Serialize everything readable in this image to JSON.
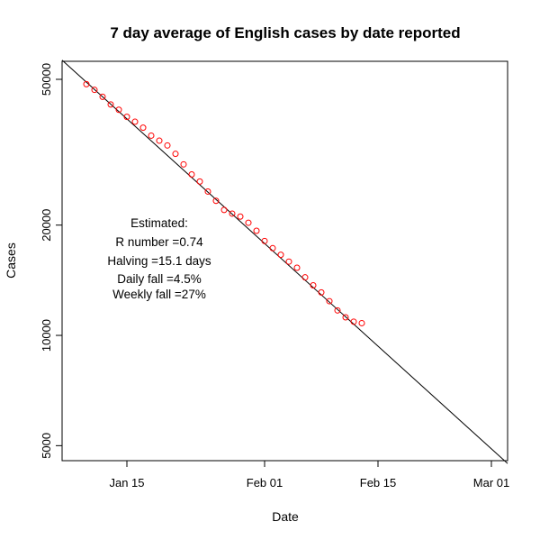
{
  "chart_data": {
    "type": "scatter",
    "title": "7 day average of English cases by date reported",
    "xlabel": "Date",
    "ylabel": "Cases",
    "log_y": true,
    "grid": false,
    "xlim": [
      "2021-01-07",
      "2021-03-03"
    ],
    "ylim": [
      4550,
      56000
    ],
    "x_ticks": [
      {
        "date": "2021-01-15",
        "label": "Jan 15"
      },
      {
        "date": "2021-02-01",
        "label": "Feb 01"
      },
      {
        "date": "2021-02-15",
        "label": "Feb 15"
      },
      {
        "date": "2021-03-01",
        "label": "Mar 01"
      }
    ],
    "y_ticks": [
      {
        "value": 5000,
        "label": "5000"
      },
      {
        "value": 10000,
        "label": "10000"
      },
      {
        "value": 20000,
        "label": "20000"
      },
      {
        "value": 50000,
        "label": "50000"
      }
    ],
    "series": [
      {
        "type": "scatter",
        "color": "#ff0000",
        "points": [
          {
            "x": "2021-01-10",
            "y": 48500
          },
          {
            "x": "2021-01-11",
            "y": 46800
          },
          {
            "x": "2021-01-12",
            "y": 44800
          },
          {
            "x": "2021-01-13",
            "y": 42700
          },
          {
            "x": "2021-01-14",
            "y": 41300
          },
          {
            "x": "2021-01-15",
            "y": 39500
          },
          {
            "x": "2021-01-16",
            "y": 38300
          },
          {
            "x": "2021-01-17",
            "y": 36900
          },
          {
            "x": "2021-01-18",
            "y": 35100
          },
          {
            "x": "2021-01-19",
            "y": 34000
          },
          {
            "x": "2021-01-20",
            "y": 33000
          },
          {
            "x": "2021-01-21",
            "y": 31300
          },
          {
            "x": "2021-01-22",
            "y": 29300
          },
          {
            "x": "2021-01-23",
            "y": 27500
          },
          {
            "x": "2021-01-24",
            "y": 26300
          },
          {
            "x": "2021-01-25",
            "y": 24700
          },
          {
            "x": "2021-01-26",
            "y": 23300
          },
          {
            "x": "2021-01-27",
            "y": 22000
          },
          {
            "x": "2021-01-28",
            "y": 21500
          },
          {
            "x": "2021-01-29",
            "y": 21100
          },
          {
            "x": "2021-01-30",
            "y": 20300
          },
          {
            "x": "2021-01-31",
            "y": 19300
          },
          {
            "x": "2021-02-01",
            "y": 18100
          },
          {
            "x": "2021-02-02",
            "y": 17300
          },
          {
            "x": "2021-02-03",
            "y": 16600
          },
          {
            "x": "2021-02-04",
            "y": 15900
          },
          {
            "x": "2021-02-05",
            "y": 15300
          },
          {
            "x": "2021-02-06",
            "y": 14400
          },
          {
            "x": "2021-02-07",
            "y": 13700
          },
          {
            "x": "2021-02-08",
            "y": 13100
          },
          {
            "x": "2021-02-09",
            "y": 12400
          },
          {
            "x": "2021-02-10",
            "y": 11700
          },
          {
            "x": "2021-02-11",
            "y": 11200
          },
          {
            "x": "2021-02-12",
            "y": 10900
          },
          {
            "x": "2021-02-13",
            "y": 10800
          }
        ]
      },
      {
        "type": "line",
        "color": "#000000",
        "points": [
          {
            "x": "2021-01-07",
            "y": 56400
          },
          {
            "x": "2021-03-03",
            "y": 4470
          }
        ]
      }
    ],
    "annotation": {
      "lines": [
        "Estimated:",
        "R number =0.74",
        "Halving =15.1 days",
        "Daily fall =4.5%",
        "Weekly fall =27%"
      ]
    }
  }
}
